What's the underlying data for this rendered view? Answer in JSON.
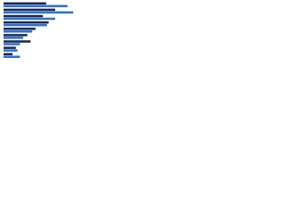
{
  "chart_data": {
    "type": "hbar",
    "categories": [
      null,
      null,
      null,
      null,
      null,
      null,
      null,
      null,
      null
    ],
    "series": [
      {
        "color": "#1b2a4a",
        "values": [
          52,
          63,
          48,
          55,
          39,
          29,
          33,
          15,
          11
        ]
      },
      {
        "color": "#2f6fd6",
        "values": [
          78,
          85,
          63,
          53,
          35,
          24,
          20,
          17,
          20
        ]
      }
    ],
    "xlim": [
      0,
      100
    ]
  }
}
